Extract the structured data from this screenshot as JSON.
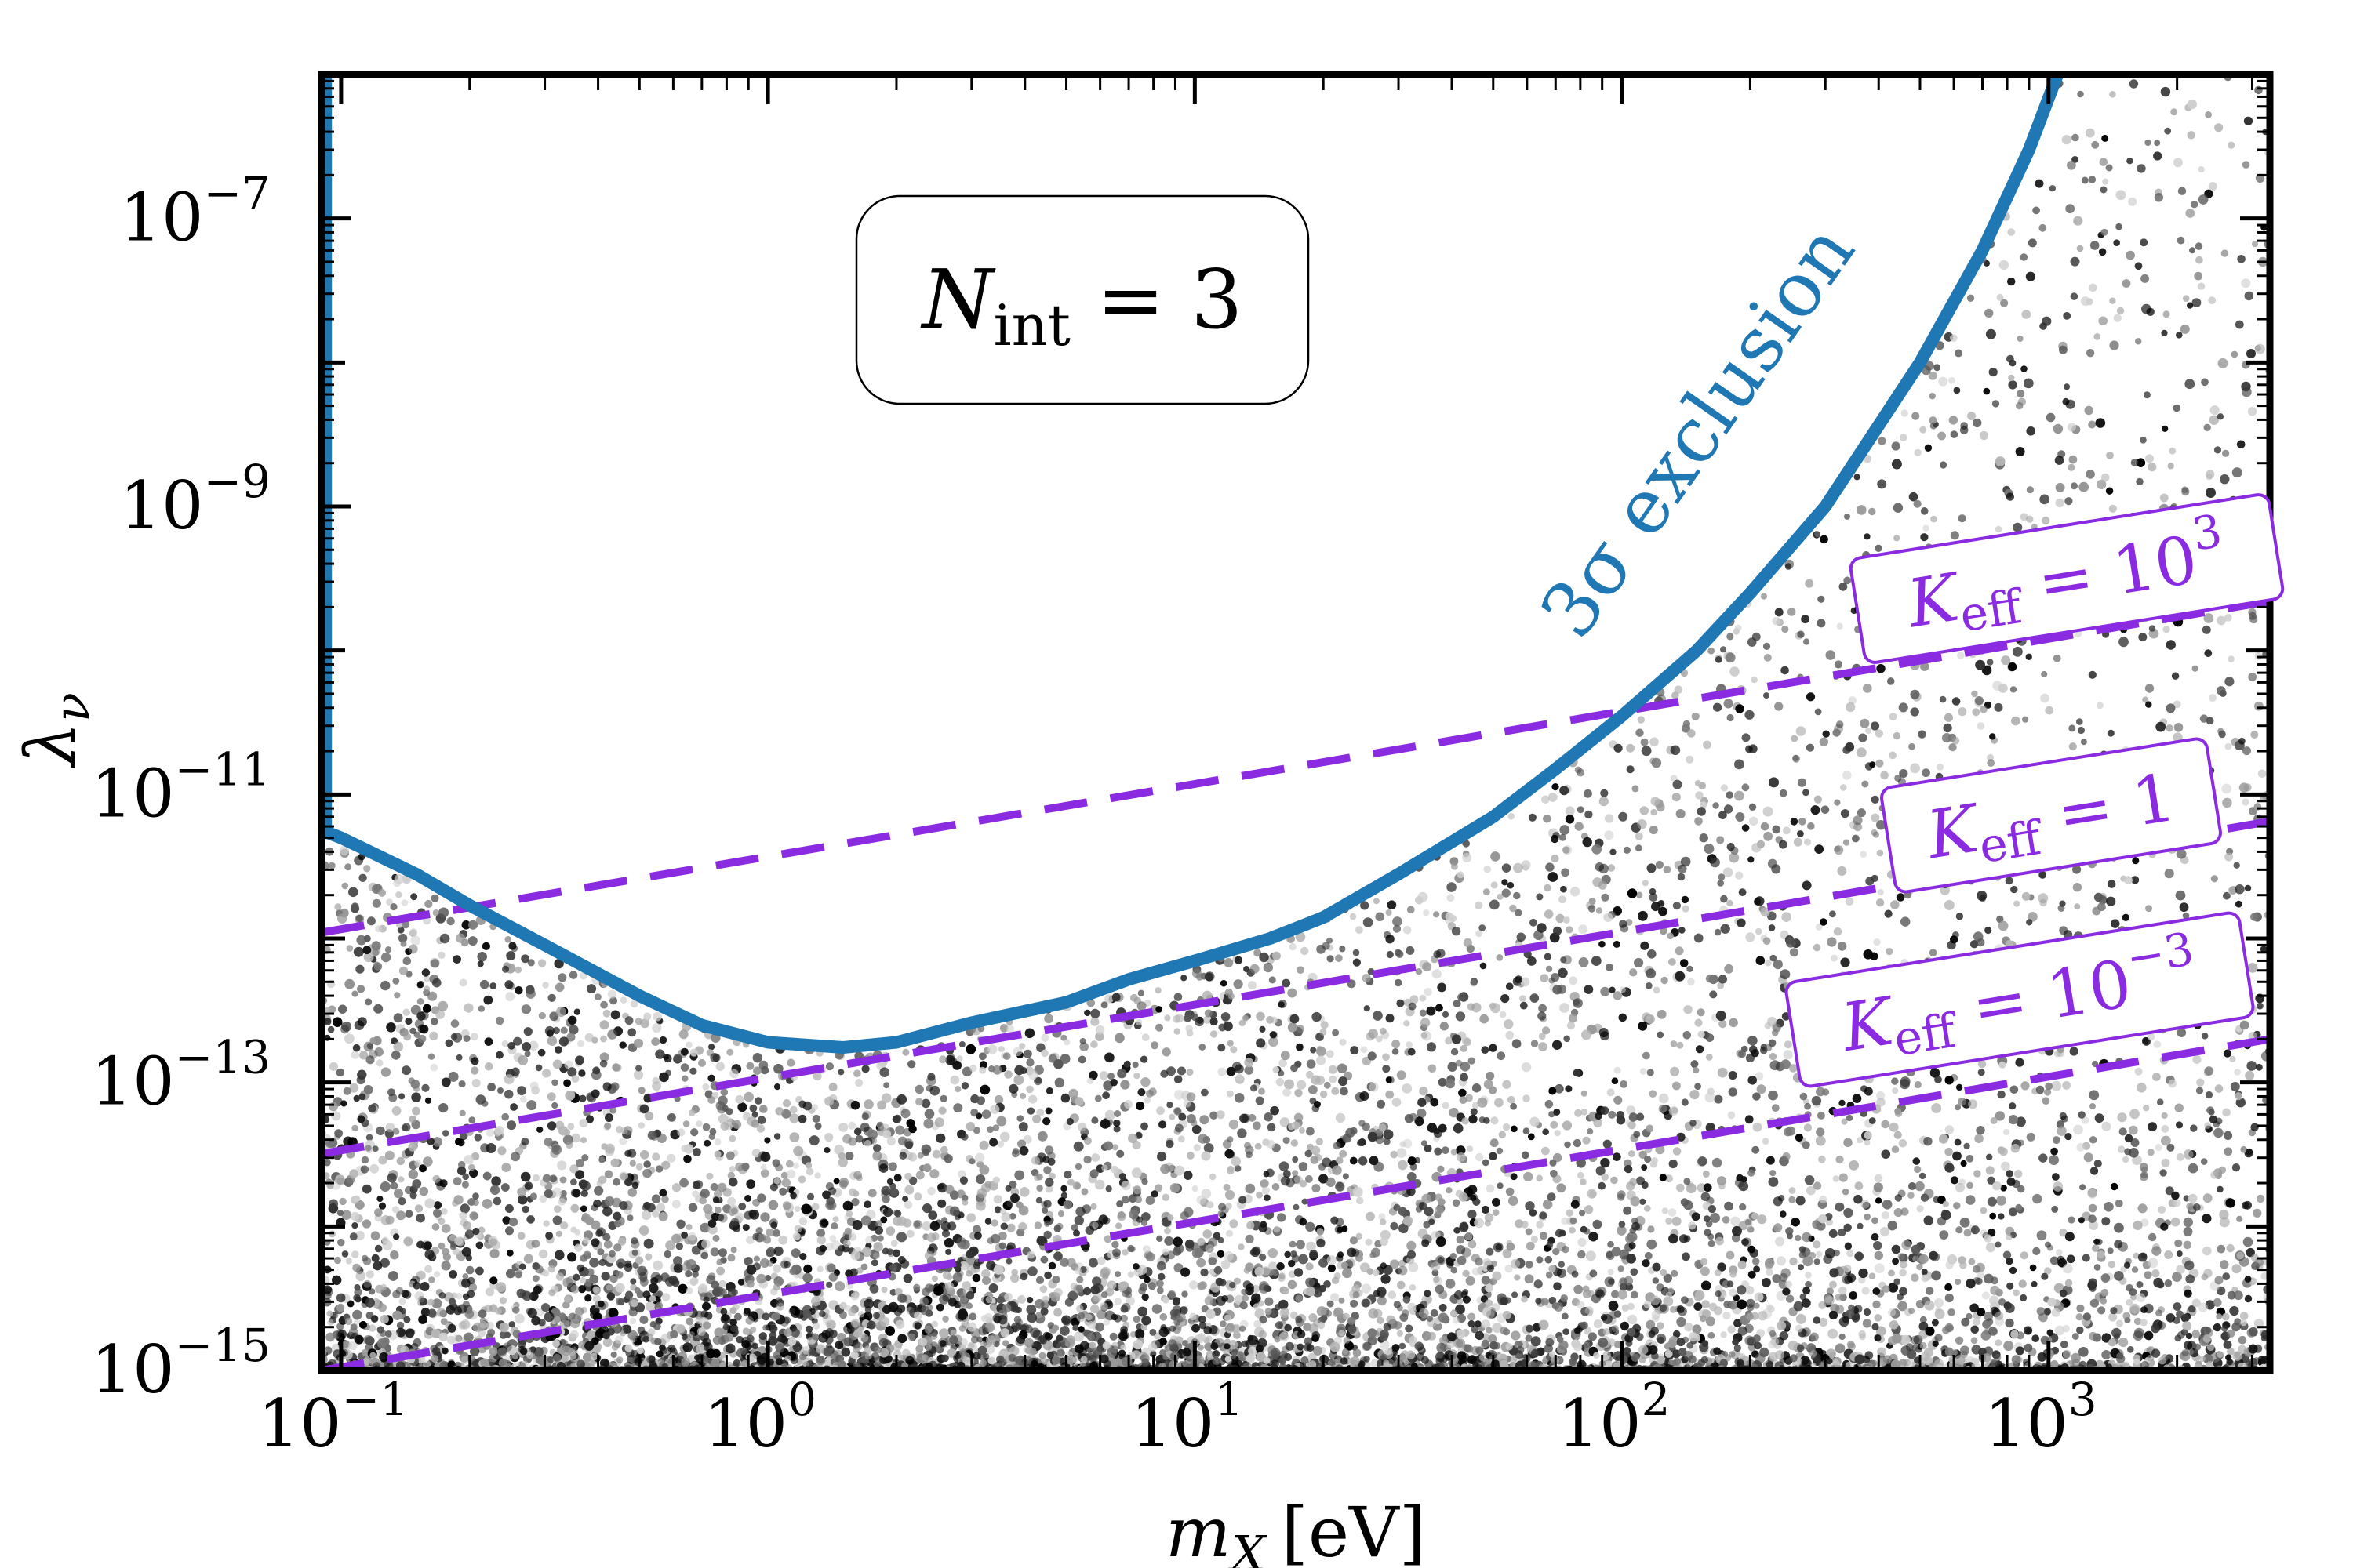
{
  "chart_data": {
    "type": "scatter",
    "xscale": "log",
    "yscale": "log",
    "xlim": [
      0.09,
      3300
    ],
    "ylim": [
      1e-15,
      1e-06
    ],
    "xlabel_base": "m",
    "xlabel_sub": "X",
    "xlabel_unit": "[eV]",
    "ylabel_base": "λ",
    "ylabel_sub": "ν",
    "x_ticks": [
      {
        "value": 0.1,
        "base": "10",
        "exp": "−1"
      },
      {
        "value": 1,
        "base": "10",
        "exp": "0"
      },
      {
        "value": 10,
        "base": "10",
        "exp": "1"
      },
      {
        "value": 100,
        "base": "10",
        "exp": "2"
      },
      {
        "value": 1000,
        "base": "10",
        "exp": "3"
      }
    ],
    "y_ticks": [
      {
        "value": 1e-15,
        "base": "10",
        "exp": "−15"
      },
      {
        "value": 1e-13,
        "base": "10",
        "exp": "−13"
      },
      {
        "value": 1e-11,
        "base": "10",
        "exp": "−11"
      },
      {
        "value": 1e-09,
        "base": "10",
        "exp": "−9"
      },
      {
        "value": 1e-07,
        "base": "10",
        "exp": "−7"
      }
    ],
    "annotation": {
      "base": "N",
      "sub": "int",
      "rest": " = 3"
    },
    "exclusion_label": "3σ exclusion",
    "exclusion_color": "#1f77b4",
    "k_color": "#8a2be2",
    "exclusion_curve": [
      [
        0.092,
        1e-06
      ],
      [
        0.092,
        5.5e-12
      ],
      [
        0.1,
        5e-12
      ],
      [
        0.15,
        2.8e-12
      ],
      [
        0.2,
        1.7e-12
      ],
      [
        0.3,
        9e-13
      ],
      [
        0.5,
        4e-13
      ],
      [
        0.7,
        2.5e-13
      ],
      [
        1.0,
        1.9e-13
      ],
      [
        1.5,
        1.75e-13
      ],
      [
        2.0,
        1.9e-13
      ],
      [
        3.0,
        2.6e-13
      ],
      [
        5.0,
        3.6e-13
      ],
      [
        7.0,
        5.2e-13
      ],
      [
        10,
        7e-13
      ],
      [
        15,
        1e-12
      ],
      [
        20,
        1.4e-12
      ],
      [
        30,
        2.8e-12
      ],
      [
        50,
        7e-12
      ],
      [
        70,
        1.5e-11
      ],
      [
        100,
        3.5e-11
      ],
      [
        150,
        1e-10
      ],
      [
        200,
        2.5e-10
      ],
      [
        300,
        1e-09
      ],
      [
        500,
        1e-08
      ],
      [
        700,
        6e-08
      ],
      [
        900,
        3e-07
      ],
      [
        1050,
        1e-06
      ]
    ],
    "k_lines": [
      {
        "label_base": "K",
        "label_sub": "eff",
        "label_rest": " = 10",
        "label_exp": "3",
        "x": [
          0.09,
          3300
        ],
        "y": [
          1.1e-12,
          2.2e-10
        ]
      },
      {
        "label_base": "K",
        "label_sub": "eff",
        "label_rest": " = 1",
        "label_exp": "",
        "x": [
          0.09,
          3300
        ],
        "y": [
          3.2e-14,
          6.5e-12
        ]
      },
      {
        "label_base": "K",
        "label_sub": "eff",
        "label_rest": " = 10",
        "label_exp": "−3",
        "x": [
          0.09,
          3300
        ],
        "y": [
          1e-15,
          2e-13
        ]
      }
    ],
    "scatter_points": "dense random sample of black/grey points below the 3σ exclusion curve, approximately 9000 points",
    "scatter_count": 9000
  }
}
